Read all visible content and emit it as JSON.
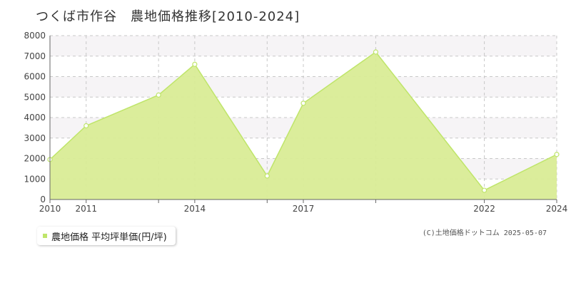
{
  "title": "つくば市作谷　農地価格推移[2010-2024]",
  "credit": "(C)土地価格ドットコム 2025-05-07",
  "legend": {
    "label": "農地価格 平均坪単価(円/坪)"
  },
  "colors": {
    "fill": "#d9ec96",
    "line": "#bfe56a",
    "band": "#f6f4f6",
    "grid": "#c8c8c8"
  },
  "chart_data": {
    "type": "area",
    "title": "つくば市作谷　農地価格推移[2010-2024]",
    "xlabel": "",
    "ylabel": "",
    "xlim": [
      2010,
      2024
    ],
    "ylim": [
      0,
      8000
    ],
    "x_ticks": [
      2010,
      2011,
      2014,
      2017,
      2022,
      2024
    ],
    "x_gridlines": [
      2010,
      2011,
      2013,
      2014,
      2016,
      2017,
      2019,
      2022,
      2024
    ],
    "y_ticks": [
      0,
      1000,
      2000,
      3000,
      4000,
      5000,
      6000,
      7000,
      8000
    ],
    "grid": true,
    "series": [
      {
        "name": "農地価格 平均坪単価(円/坪)",
        "x": [
          2010,
          2011,
          2013,
          2014,
          2016,
          2017,
          2019,
          2022,
          2024
        ],
        "values": [
          1950,
          3600,
          5100,
          6600,
          1150,
          4700,
          7200,
          450,
          2200
        ]
      }
    ]
  }
}
